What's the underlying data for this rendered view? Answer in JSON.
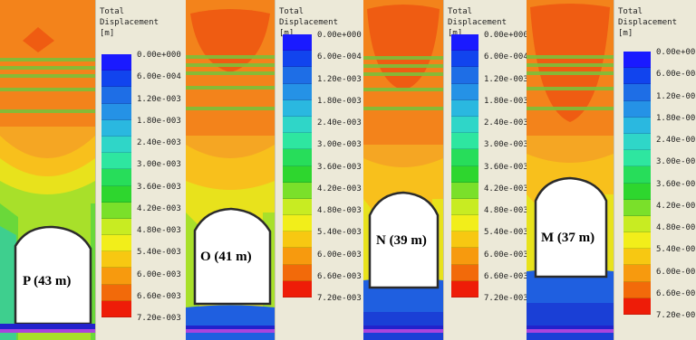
{
  "legend": {
    "title_line1": "Total",
    "title_line2": "Displacement",
    "title_line3": "[m]",
    "ticks": [
      "0.00e+000",
      "6.00e-004",
      "1.20e-003",
      "1.80e-003",
      "2.40e-003",
      "3.00e-003",
      "3.60e-003",
      "4.20e-003",
      "4.80e-003",
      "5.40e-003",
      "6.00e-003",
      "6.60e-003",
      "7.20e-003"
    ],
    "colors": [
      "#1a1aff",
      "#1144ee",
      "#1e6ee6",
      "#2592e6",
      "#2ab8e0",
      "#2fd6c8",
      "#2ee6a0",
      "#27dd5a",
      "#2ed62e",
      "#7ae02a",
      "#c8ec22",
      "#f2ee1a",
      "#f7c812",
      "#f79a0e",
      "#f26a0a",
      "#ee1c08"
    ]
  },
  "panels": [
    {
      "id": "P",
      "label": "P (43 m)"
    },
    {
      "id": "O",
      "label": "O (41 m)"
    },
    {
      "id": "N",
      "label": "N (39 m)"
    },
    {
      "id": "M",
      "label": "M (37 m)"
    }
  ]
}
